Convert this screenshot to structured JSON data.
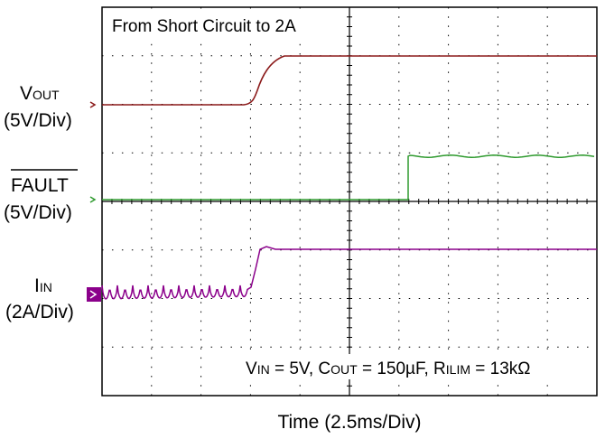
{
  "title": "From Short Circuit to 2A",
  "channels": [
    {
      "name": {
        "main": "V",
        "sub": "OUT"
      },
      "scale": "(5V/Div)"
    },
    {
      "name": {
        "main": "FAULT"
      },
      "scale": "(5V/Div)"
    },
    {
      "name": {
        "main": "I",
        "sub": "IN"
      },
      "scale": "(2A/Div)"
    }
  ],
  "conditions": [
    "V",
    "IN",
    " = 5V, C",
    "OUT",
    " = 150µF, R",
    "ILIM",
    " = 13kΩ"
  ],
  "x_axis": "Time  (2.5ms/Div)"
}
